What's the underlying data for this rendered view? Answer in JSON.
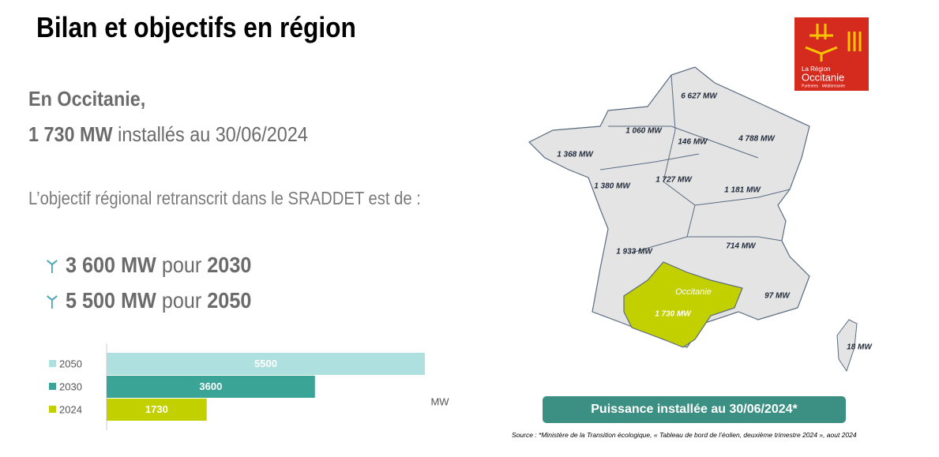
{
  "header": {
    "title": "Bilan et objectifs en région"
  },
  "intro": {
    "line1": "En Occitanie,",
    "line2_bold": "1 730 MW",
    "line2_rest": "installés au 30/06/2024"
  },
  "objective": "L’objectif régional retranscrit dans le SRADDET est de :",
  "bullets": [
    {
      "power": "3 600 MW",
      "word": "pour",
      "year": "2030"
    },
    {
      "power": "5 500 MW",
      "word": "pour",
      "year": "2050"
    }
  ],
  "logo": {
    "line1": "La Région",
    "line2": "Occitanie",
    "line3": "Pyrénées · Méditerranée"
  },
  "map": {
    "labels": [
      "6 627 MW",
      "1 060 MW",
      "146 MW",
      "4 788 MW",
      "1 368 MW",
      "1 727 MW",
      "1 380 MW",
      "1 181 MW",
      "1 933 MW",
      "714 MW",
      "Occitanie",
      "1 730 MW",
      "97 MW",
      "18 MW"
    ]
  },
  "button": "Puissance installée au 30/06/2024*",
  "source": "Source : *Ministère de la Transition écologique, « Tableau de bord de l’éolien, deuxième trimestre 2024 », aout 2024",
  "chart_data": {
    "type": "bar",
    "orientation": "horizontal",
    "categories": [
      "2050",
      "2030",
      "2024"
    ],
    "values": [
      5500,
      3600,
      1730
    ],
    "colors": [
      "#aee0df",
      "#3aa597",
      "#c3d000"
    ],
    "unit": "MW",
    "xlim": [
      0,
      5500
    ]
  }
}
